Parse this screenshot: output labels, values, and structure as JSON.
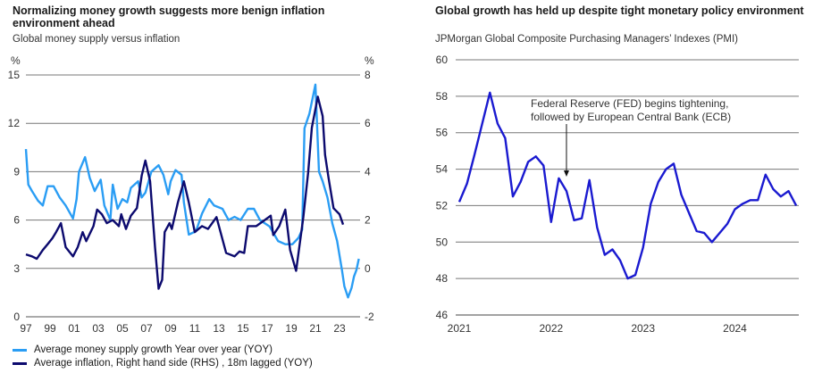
{
  "chart_data": [
    {
      "type": "line",
      "title": "Normalizing money growth suggests more benign inflation environment ahead",
      "subtitle": "Global money supply versus inflation",
      "ylabel": "%",
      "y2label": "%",
      "ylim": [
        0,
        15
      ],
      "y2lim": [
        -2,
        8
      ],
      "yticks": [
        "0",
        "3",
        "6",
        "9",
        "12",
        "15"
      ],
      "y2ticks": [
        "-2",
        "0",
        "2",
        "4",
        "6",
        "8"
      ],
      "xticks": [
        "97",
        "99",
        "01",
        "03",
        "05",
        "07",
        "09",
        "11",
        "13",
        "15",
        "17",
        "19",
        "21",
        "23"
      ],
      "grid": true,
      "legend": "bottom",
      "series": [
        {
          "name": "Average money supply growth Year over year (YOY)",
          "axis": "left",
          "color": "#2a9df4",
          "x": [
            1997.0,
            1997.2,
            1997.5,
            1998.0,
            1998.4,
            1998.8,
            1999.3,
            1999.8,
            2000.3,
            2000.9,
            2001.2,
            2001.4,
            2001.9,
            2002.3,
            2002.7,
            2003.2,
            2003.5,
            2004.0,
            2004.2,
            2004.6,
            2005.0,
            2005.4,
            2005.7,
            2006.3,
            2006.6,
            2006.9,
            2007.4,
            2008.0,
            2008.4,
            2008.8,
            2009.0,
            2009.4,
            2009.9,
            2010.1,
            2010.5,
            2011.1,
            2011.6,
            2012.2,
            2012.6,
            2013.3,
            2013.8,
            2014.3,
            2014.8,
            2015.4,
            2015.9,
            2016.4,
            2017.2,
            2017.9,
            2018.5,
            2019.1,
            2019.6,
            2019.9,
            2020.1,
            2020.5,
            2021.0,
            2021.3,
            2021.6,
            2022.0,
            2022.4,
            2022.8,
            2023.2,
            2023.4,
            2023.7,
            2024.0,
            2024.2,
            2024.4,
            2024.6
          ],
          "values": [
            10.4,
            8.2,
            7.8,
            7.2,
            6.9,
            8.1,
            8.1,
            7.4,
            6.9,
            6.1,
            7.3,
            9.0,
            9.9,
            8.6,
            7.8,
            8.5,
            6.9,
            6.0,
            8.2,
            6.7,
            7.3,
            7.1,
            8.0,
            8.4,
            7.4,
            7.7,
            9.0,
            9.4,
            8.8,
            7.6,
            8.4,
            9.1,
            8.8,
            7.1,
            5.1,
            5.3,
            6.4,
            7.3,
            6.9,
            6.7,
            6.0,
            6.2,
            6.0,
            6.7,
            6.7,
            6.0,
            5.6,
            4.7,
            4.5,
            4.5,
            4.9,
            5.4,
            11.7,
            12.6,
            14.4,
            9.0,
            8.4,
            7.4,
            5.8,
            4.7,
            2.9,
            1.9,
            1.2,
            1.8,
            2.5,
            2.9,
            3.6
          ]
        },
        {
          "name": "Average inflation, Right hand side (RHS) , 18m lagged (YOY)",
          "axis": "right",
          "color": "#0c0a6e",
          "x": [
            1997.0,
            1997.5,
            1997.9,
            1998.4,
            1998.8,
            1999.2,
            1999.5,
            1999.9,
            2000.3,
            2000.9,
            2001.3,
            2001.7,
            2002.0,
            2002.6,
            2002.9,
            2003.3,
            2003.7,
            2004.2,
            2004.7,
            2004.9,
            2005.3,
            2005.7,
            2006.2,
            2006.6,
            2006.9,
            2007.3,
            2007.7,
            2008.0,
            2008.3,
            2008.5,
            2008.9,
            2009.1,
            2009.6,
            2010.1,
            2010.5,
            2011.0,
            2011.6,
            2012.1,
            2012.8,
            2013.6,
            2014.3,
            2014.7,
            2015.1,
            2015.4,
            2016.1,
            2016.8,
            2017.3,
            2017.5,
            2018.0,
            2018.5,
            2018.9,
            2019.4,
            2020.0,
            2020.4,
            2020.7,
            2021.2,
            2021.6,
            2021.8,
            2022.1,
            2022.5,
            2023.0,
            2023.3
          ],
          "values": [
            0.58,
            0.5,
            0.4,
            0.76,
            1.0,
            1.25,
            1.5,
            1.87,
            0.88,
            0.5,
            0.88,
            1.5,
            1.13,
            1.75,
            2.43,
            2.24,
            1.87,
            2.0,
            1.75,
            2.24,
            1.63,
            2.18,
            2.49,
            3.84,
            4.46,
            3.6,
            0.88,
            -0.84,
            -0.47,
            1.5,
            1.87,
            1.63,
            2.73,
            3.6,
            2.73,
            1.5,
            1.75,
            1.63,
            2.12,
            0.64,
            0.5,
            0.7,
            0.64,
            1.75,
            1.75,
            2.0,
            2.18,
            1.38,
            1.75,
            2.43,
            0.76,
            -0.1,
            2.12,
            3.97,
            5.82,
            7.1,
            6.3,
            4.7,
            3.72,
            2.49,
            2.24,
            1.81
          ]
        }
      ]
    },
    {
      "type": "line",
      "title": "Global growth has held up despite tight monetary policy environment",
      "subtitle": "JPMorgan Global Composite Purchasing Managers’ Indexes (PMI)",
      "ylim": [
        46,
        60
      ],
      "yticks": [
        "46",
        "48",
        "50",
        "52",
        "54",
        "56",
        "58",
        "60"
      ],
      "xticks": [
        "2021",
        "2022",
        "2023",
        "2024"
      ],
      "grid": true,
      "annotation": {
        "text_line1": "Federal Reserve (FED) begins tightening,",
        "text_line2": "followed by European Central Bank (ECB)",
        "date": "2022-03"
      },
      "series": [
        {
          "color": "#1a1ad0",
          "start": "2021-01",
          "frequency": "monthly",
          "values": [
            52.2,
            53.2,
            54.8,
            56.5,
            58.2,
            56.5,
            55.7,
            52.5,
            53.3,
            54.4,
            54.7,
            54.2,
            51.1,
            53.5,
            52.8,
            51.2,
            51.3,
            53.4,
            50.8,
            49.3,
            49.6,
            49.0,
            48.0,
            48.2,
            49.7,
            52.1,
            53.3,
            54.0,
            54.3,
            52.6,
            51.6,
            50.6,
            50.5,
            50.0,
            50.5,
            51.0,
            51.8,
            52.1,
            52.3,
            52.3,
            53.7,
            52.9,
            52.5,
            52.8,
            52.0
          ]
        }
      ]
    }
  ]
}
